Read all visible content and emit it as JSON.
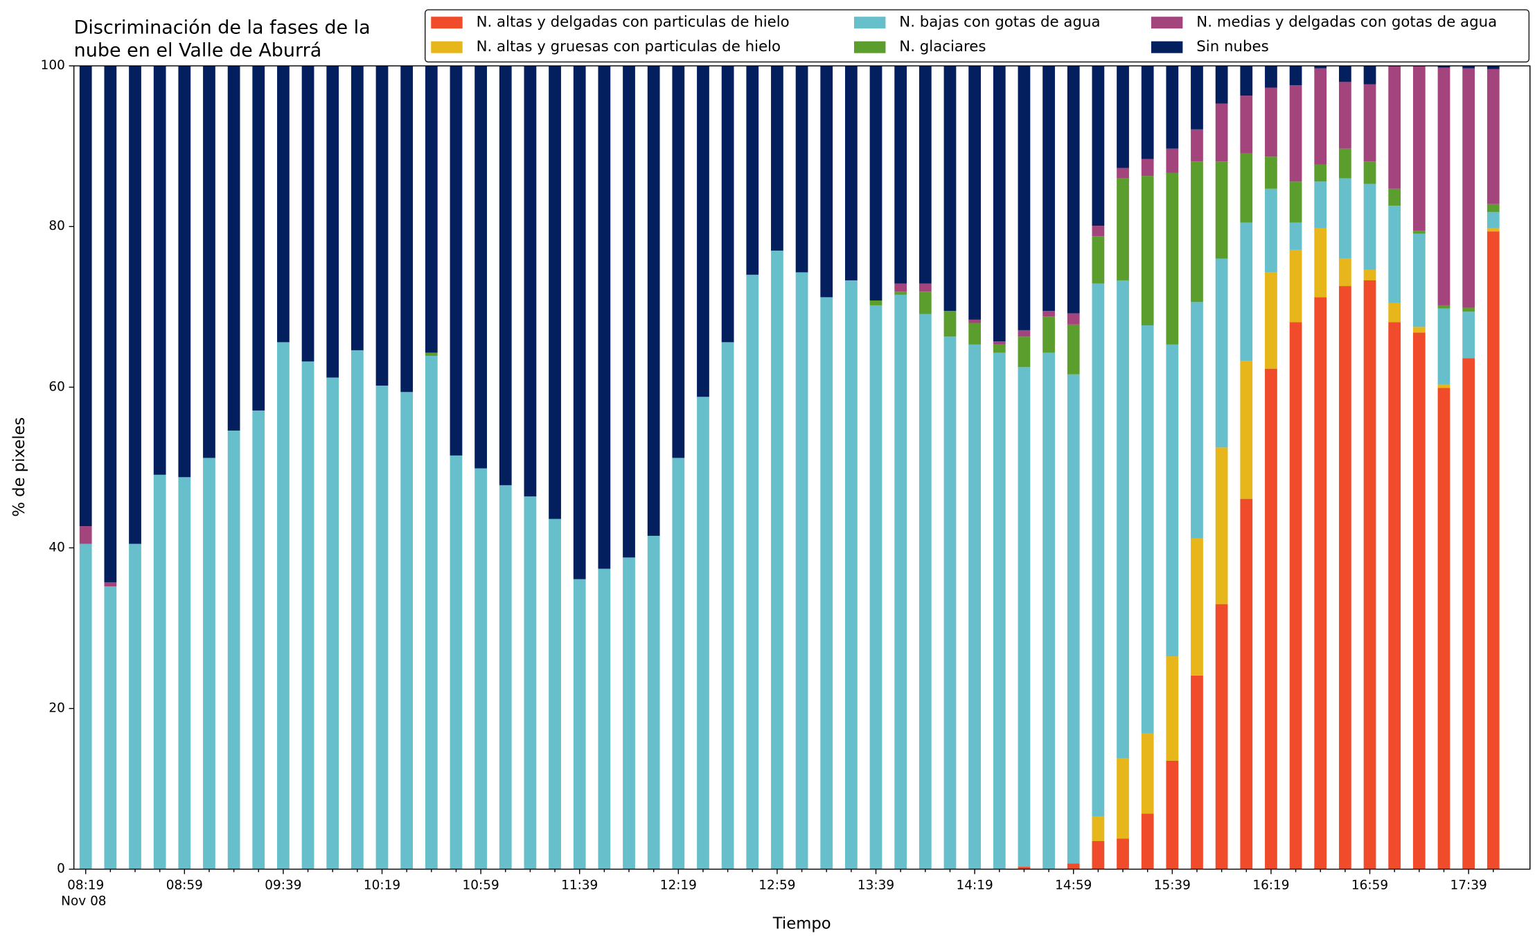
{
  "chart_data": {
    "type": "stacked_bar",
    "title_lines": [
      "Discriminación de la fases de la",
      "nube en el Valle de Aburrá"
    ],
    "x_label": "Tiempo",
    "y_label": "% de pixeles",
    "date_label": "Nov 08",
    "categories": [
      "08:19",
      null,
      null,
      null,
      "08:59",
      null,
      null,
      null,
      "09:39",
      null,
      null,
      null,
      "10:19",
      null,
      null,
      null,
      "10:59",
      null,
      null,
      null,
      "11:39",
      null,
      null,
      null,
      "12:19",
      null,
      null,
      null,
      "12:59",
      null,
      null,
      null,
      "13:39",
      null,
      null,
      null,
      "14:19",
      null,
      null,
      null,
      "14:59",
      null,
      null,
      null,
      "15:39",
      null,
      null,
      null,
      "16:19",
      null,
      null,
      null,
      "16:59",
      null,
      null,
      null,
      "17:39",
      null
    ],
    "ylim": [
      0,
      100
    ],
    "yticks": [
      0,
      20,
      40,
      60,
      80,
      100
    ],
    "legend": "top",
    "series": [
      {
        "name": "N. altas y delgadas con particulas de hielo",
        "color": "#f04b2a",
        "values": [
          0,
          0,
          0,
          0,
          0,
          0,
          0,
          0,
          0,
          0,
          0,
          0,
          0,
          0,
          0,
          0,
          0,
          0,
          0,
          0,
          0,
          0,
          0,
          0,
          0,
          0,
          0,
          0,
          0,
          0,
          0,
          0,
          0,
          0,
          0,
          0,
          0,
          0,
          0.3,
          0,
          0.7,
          3.5,
          3.8,
          6.9,
          13.5,
          24.1,
          33.0,
          46.1,
          62.3,
          68.1,
          71.2,
          72.6,
          73.3,
          68.1,
          66.8,
          59.9,
          63.6,
          79.4
        ]
      },
      {
        "name": "N. altas y gruesas con particulas de hielo",
        "color": "#e6b61a",
        "values": [
          0,
          0,
          0,
          0,
          0,
          0,
          0,
          0,
          0,
          0,
          0,
          0,
          0,
          0,
          0,
          0,
          0,
          0,
          0,
          0,
          0,
          0,
          0,
          0,
          0,
          0,
          0,
          0,
          0,
          0,
          0,
          0,
          0,
          0,
          0,
          0,
          0,
          0,
          0,
          0,
          0,
          3.1,
          10.0,
          10.0,
          13.0,
          17.1,
          19.5,
          17.2,
          12.0,
          9.0,
          8.6,
          3.4,
          1.3,
          2.4,
          0.7,
          0.4,
          0,
          0.4
        ]
      },
      {
        "name": "N. bajas con gotas de agua",
        "color": "#66bfcb",
        "values": [
          40.5,
          35.2,
          40.5,
          49.1,
          48.8,
          51.2,
          54.6,
          57.1,
          65.6,
          63.2,
          61.2,
          64.6,
          60.2,
          59.4,
          63.9,
          51.5,
          49.9,
          47.8,
          46.4,
          43.6,
          36.1,
          37.4,
          38.8,
          41.5,
          51.2,
          58.8,
          65.6,
          74.0,
          77.0,
          74.3,
          71.2,
          73.3,
          70.2,
          71.5,
          69.1,
          66.3,
          65.3,
          64.3,
          62.2,
          64.3,
          60.9,
          66.3,
          59.5,
          50.8,
          38.8,
          29.4,
          23.5,
          17.2,
          10.4,
          3.4,
          5.8,
          10.0,
          10.7,
          12.1,
          11.6,
          9.5,
          5.8,
          2.0
        ]
      },
      {
        "name": "N. glaciares",
        "color": "#5c9e2e",
        "values": [
          0,
          0,
          0,
          0,
          0,
          0,
          0,
          0,
          0,
          0,
          0,
          0,
          0,
          0,
          0.4,
          0,
          0,
          0,
          0,
          0,
          0,
          0,
          0,
          0,
          0,
          0,
          0,
          0,
          0,
          0,
          0,
          0,
          0.6,
          0.4,
          2.8,
          3.2,
          2.7,
          1.0,
          3.8,
          4.5,
          6.2,
          5.9,
          12.7,
          18.6,
          21.4,
          17.5,
          12.1,
          8.6,
          4.0,
          5.1,
          2.1,
          3.7,
          2.8,
          2.1,
          0.4,
          0.4,
          0.5,
          1.0
        ]
      },
      {
        "name": "N. medias y delgadas con gotas de agua",
        "color": "#a3457c",
        "values": [
          2.2,
          0.5,
          0,
          0,
          0,
          0,
          0,
          0,
          0,
          0,
          0,
          0,
          0,
          0,
          0,
          0,
          0,
          0,
          0,
          0,
          0,
          0,
          0,
          0,
          0,
          0,
          0,
          0,
          0,
          0,
          0,
          0,
          0,
          1.0,
          1.0,
          0,
          0.4,
          0.4,
          0.8,
          0.7,
          1.4,
          1.3,
          1.3,
          2.1,
          3.0,
          4.0,
          7.2,
          7.2,
          8.6,
          12.0,
          12.0,
          8.3,
          9.6,
          15.3,
          20.5,
          29.6,
          29.8,
          16.8
        ]
      },
      {
        "name": "Sin nubes",
        "color": "#031f5e",
        "values": [
          57.3,
          64.3,
          59.5,
          50.9,
          51.2,
          48.8,
          45.4,
          42.9,
          34.4,
          36.8,
          38.8,
          35.4,
          39.8,
          40.6,
          35.7,
          48.5,
          50.1,
          52.2,
          53.6,
          56.4,
          63.9,
          62.6,
          61.2,
          58.5,
          48.8,
          41.2,
          34.4,
          26.0,
          23.0,
          25.7,
          28.8,
          26.7,
          29.2,
          27.1,
          27.1,
          30.5,
          31.6,
          34.3,
          32.9,
          30.5,
          30.8,
          19.9,
          12.7,
          11.6,
          10.3,
          7.9,
          4.7,
          3.7,
          2.7,
          2.4,
          0.3,
          2.0,
          2.3,
          0,
          0,
          0.2,
          0.3,
          0.4
        ]
      }
    ]
  }
}
